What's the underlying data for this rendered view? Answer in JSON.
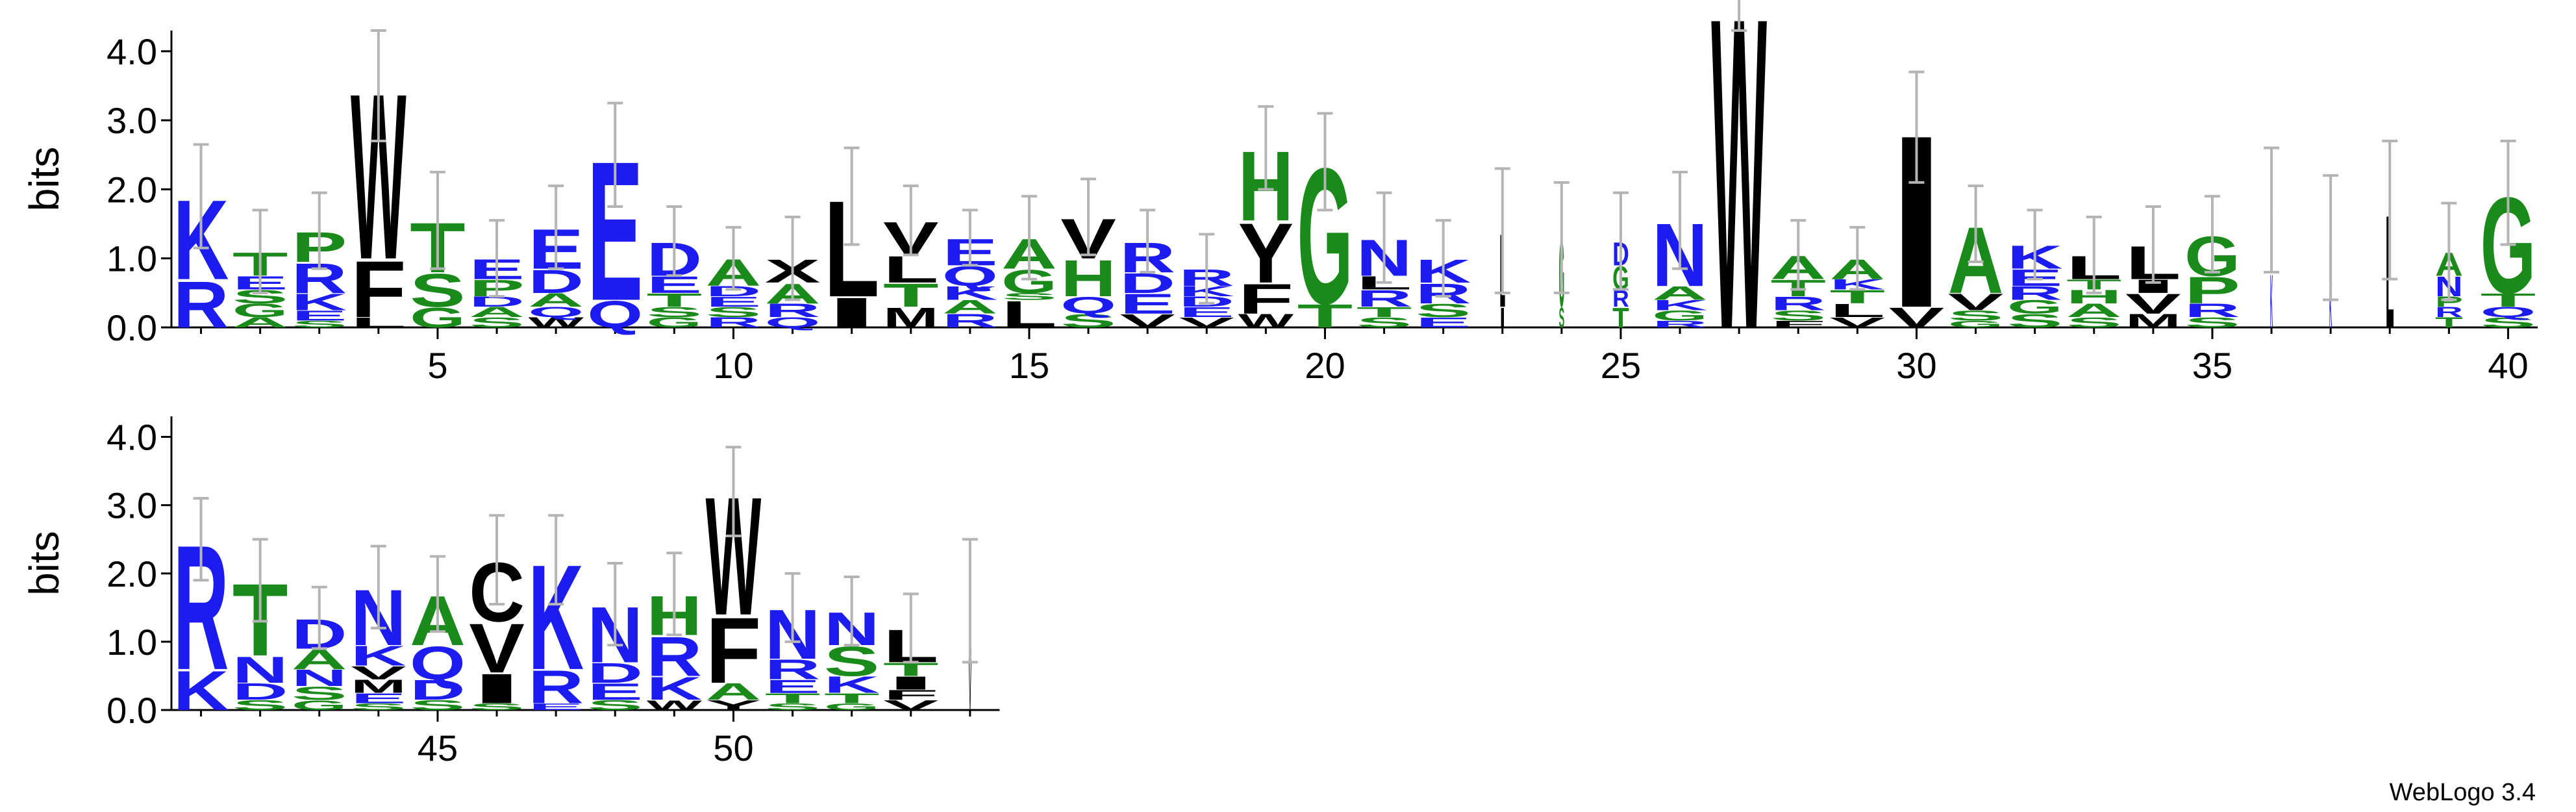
{
  "chart_data": [
    {
      "type": "logo",
      "ylabel": "bits",
      "x": [
        1,
        2,
        3,
        4,
        5,
        6,
        7,
        8,
        9,
        10,
        11,
        12,
        13,
        14,
        15,
        16,
        17,
        18,
        19,
        20,
        21,
        22,
        23,
        24,
        25,
        26,
        27,
        28,
        29,
        30,
        31,
        32,
        33,
        34,
        35,
        36,
        37,
        38,
        39,
        40
      ],
      "xlim": [
        0.5,
        40.5
      ],
      "ylim": [
        0,
        4.3
      ],
      "xticks": [
        5,
        10,
        15,
        20,
        25,
        30,
        35,
        40
      ],
      "yticks": [
        {
          "value": 0,
          "label": "0.0"
        },
        {
          "value": 1,
          "label": "1.0"
        },
        {
          "value": 2,
          "label": "2.0"
        },
        {
          "value": 3,
          "label": "3.0"
        },
        {
          "value": 4,
          "label": "4.0"
        }
      ],
      "colors": {
        "A": "#1a8a1a",
        "G": "#1a8a1a",
        "H": "#1a8a1a",
        "P": "#1a8a1a",
        "S": "#1a8a1a",
        "T": "#1a8a1a",
        "D": "#1c1cf0",
        "E": "#1c1cf0",
        "K": "#1c1cf0",
        "N": "#1c1cf0",
        "Q": "#1c1cf0",
        "R": "#1c1cf0",
        "C": "#000000",
        "F": "#000000",
        "I": "#000000",
        "L": "#000000",
        "M": "#000000",
        "V": "#000000",
        "W": "#000000",
        "Y": "#000000",
        "X": "#000000"
      },
      "positions": [
        {
          "letters": [
            "R",
            "K"
          ],
          "heights": [
            0.7,
            1.2
          ],
          "error": 0.75
        },
        {
          "letters": [
            "A",
            "G",
            "S",
            "E",
            "T"
          ],
          "heights": [
            0.15,
            0.2,
            0.2,
            0.2,
            0.35
          ],
          "error": 0.6
        },
        {
          "letters": [
            "S",
            "E",
            "K",
            "R",
            "P"
          ],
          "heights": [
            0.1,
            0.15,
            0.25,
            0.45,
            0.45
          ],
          "error": 0.55
        },
        {
          "letters": [
            "L",
            "F",
            "W"
          ],
          "heights": [
            0.15,
            0.85,
            2.5
          ],
          "error": 0.8
        },
        {
          "letters": [
            "G",
            "S",
            "T"
          ],
          "heights": [
            0.3,
            0.5,
            0.75
          ],
          "error": 0.7
        },
        {
          "letters": [
            "S",
            "A",
            "D",
            "P",
            "E"
          ],
          "heights": [
            0.15,
            0.15,
            0.15,
            0.25,
            0.3
          ],
          "error": 0.55
        },
        {
          "letters": [
            "W",
            "Q",
            "A",
            "D",
            "E"
          ],
          "heights": [
            0.15,
            0.15,
            0.2,
            0.35,
            0.6
          ],
          "error": 0.6
        },
        {
          "letters": [
            "Q",
            "E"
          ],
          "heights": [
            0.4,
            2.1
          ],
          "error": 0.75
        },
        {
          "letters": [
            "G",
            "S",
            "T",
            "E",
            "D"
          ],
          "heights": [
            0.15,
            0.15,
            0.2,
            0.25,
            0.5
          ],
          "error": 0.5
        },
        {
          "letters": [
            "R",
            "S",
            "E",
            "D",
            "A"
          ],
          "heights": [
            0.15,
            0.15,
            0.15,
            0.15,
            0.4
          ],
          "error": 0.45
        },
        {
          "letters": [
            "Q",
            "R",
            "A",
            "X"
          ],
          "heights": [
            0.15,
            0.2,
            0.3,
            0.35
          ],
          "error": 0.6
        },
        {
          "letters": [
            "I",
            "L"
          ],
          "heights": [
            0.45,
            1.45
          ],
          "error": 0.7
        },
        {
          "letters": [
            "M",
            "T",
            "L",
            "V"
          ],
          "heights": [
            0.3,
            0.35,
            0.4,
            0.5
          ],
          "error": 0.5
        },
        {
          "letters": [
            "R",
            "A",
            "K",
            "Q",
            "E"
          ],
          "heights": [
            0.2,
            0.2,
            0.2,
            0.3,
            0.4
          ],
          "error": 0.4
        },
        {
          "letters": [
            "L",
            "S",
            "G",
            "A"
          ],
          "heights": [
            0.4,
            0.1,
            0.35,
            0.45
          ],
          "error": 0.6
        },
        {
          "letters": [
            "S",
            "Q",
            "H",
            "V"
          ],
          "heights": [
            0.2,
            0.25,
            0.55,
            0.6
          ],
          "error": 0.55
        },
        {
          "letters": [
            "V",
            "E",
            "D",
            "R"
          ],
          "heights": [
            0.2,
            0.3,
            0.3,
            0.45
          ],
          "error": 0.45
        },
        {
          "letters": [
            "V",
            "E",
            "D",
            "K",
            "R"
          ],
          "heights": [
            0.15,
            0.15,
            0.15,
            0.15,
            0.25
          ],
          "error": 0.5
        },
        {
          "letters": [
            "W",
            "F",
            "Y",
            "H"
          ],
          "heights": [
            0.2,
            0.45,
            0.9,
            1.05
          ],
          "error": 0.6
        },
        {
          "letters": [
            "T",
            "G"
          ],
          "heights": [
            0.35,
            2.05
          ],
          "error": 0.7
        },
        {
          "letters": [
            "S",
            "T",
            "R",
            "L",
            "N"
          ],
          "heights": [
            0.15,
            0.15,
            0.25,
            0.2,
            0.55
          ],
          "error": 0.65
        },
        {
          "letters": [
            "E",
            "S",
            "R",
            "K"
          ],
          "heights": [
            0.15,
            0.2,
            0.3,
            0.35
          ],
          "error": 0.55
        },
        {
          "letters": [
            "I",
            "L"
          ],
          "heights": [
            0.3,
            1.1
          ],
          "error": 0.9,
          "width": 0.1
        },
        {
          "letters": [
            "S",
            "G"
          ],
          "heights": [
            0.3,
            1.0
          ],
          "error": 0.8,
          "width": 0.1
        },
        {
          "letters": [
            "T",
            "R",
            "G",
            "D"
          ],
          "heights": [
            0.3,
            0.25,
            0.35,
            0.35
          ],
          "error": 0.7,
          "width": 0.3
        },
        {
          "letters": [
            "R",
            "G",
            "K",
            "A",
            "N"
          ],
          "heights": [
            0.1,
            0.15,
            0.15,
            0.2,
            0.95
          ],
          "error": 0.7
        },
        {
          "letters": [
            "W"
          ],
          "heights": [
            4.7
          ],
          "error": 0.4
        },
        {
          "letters": [
            "F",
            "S",
            "R",
            "T",
            "A"
          ],
          "heights": [
            0.1,
            0.15,
            0.2,
            0.25,
            0.35
          ],
          "error": 0.5
        },
        {
          "letters": [
            "V",
            "L",
            "T",
            "K",
            "A"
          ],
          "heights": [
            0.15,
            0.2,
            0.2,
            0.15,
            0.3
          ],
          "error": 0.45
        },
        {
          "letters": [
            "V",
            "I"
          ],
          "heights": [
            0.3,
            2.6
          ],
          "error": 0.8
        },
        {
          "letters": [
            "G",
            "S",
            "V",
            "A"
          ],
          "heights": [
            0.1,
            0.15,
            0.25,
            1.0
          ],
          "error": 0.55
        },
        {
          "letters": [
            "S",
            "G",
            "R",
            "E",
            "K"
          ],
          "heights": [
            0.2,
            0.2,
            0.2,
            0.25,
            0.35
          ],
          "error": 0.5
        },
        {
          "letters": [
            "S",
            "A",
            "H",
            "T",
            "L"
          ],
          "heights": [
            0.15,
            0.2,
            0.2,
            0.15,
            0.35
          ],
          "error": 0.55
        },
        {
          "letters": [
            "M",
            "V",
            "I",
            "L"
          ],
          "heights": [
            0.2,
            0.3,
            0.2,
            0.5
          ],
          "error": 0.55
        },
        {
          "letters": [
            "S",
            "R",
            "P",
            "G"
          ],
          "heights": [
            0.15,
            0.2,
            0.4,
            0.6
          ],
          "error": 0.55
        },
        {
          "letters": [
            "K",
            "R"
          ],
          "heights": [
            0.8,
            0.9
          ],
          "error": 0.9,
          "width": 0.05
        },
        {
          "letters": [
            "K",
            "R"
          ],
          "heights": [
            0.6,
            0.7
          ],
          "error": 0.9,
          "width": 0.05
        },
        {
          "letters": [
            "L"
          ],
          "heights": [
            1.7
          ],
          "error": 1.0,
          "width": 0.15
        },
        {
          "letters": [
            "T",
            "R",
            "P",
            "N",
            "A"
          ],
          "heights": [
            0.15,
            0.15,
            0.15,
            0.3,
            0.35
          ],
          "error": 0.7,
          "width": 0.5
        },
        {
          "letters": [
            "S",
            "Q",
            "T",
            "G"
          ],
          "heights": [
            0.15,
            0.15,
            0.2,
            1.45
          ],
          "error": 0.75
        }
      ]
    },
    {
      "type": "logo",
      "ylabel": "bits",
      "x": [
        41,
        42,
        43,
        44,
        45,
        46,
        47,
        48,
        49,
        50,
        51,
        52,
        53,
        54
      ],
      "xlim": [
        40.5,
        54.5
      ],
      "ylim": [
        0,
        4.3
      ],
      "xticks": [
        45,
        50
      ],
      "yticks": [
        {
          "value": 0,
          "label": "0.0"
        },
        {
          "value": 1,
          "label": "1.0"
        },
        {
          "value": 2,
          "label": "2.0"
        },
        {
          "value": 3,
          "label": "3.0"
        },
        {
          "value": 4,
          "label": "4.0"
        }
      ],
      "colors": {
        "A": "#1a8a1a",
        "G": "#1a8a1a",
        "H": "#1a8a1a",
        "P": "#1a8a1a",
        "S": "#1a8a1a",
        "T": "#1a8a1a",
        "D": "#1c1cf0",
        "E": "#1c1cf0",
        "K": "#1c1cf0",
        "N": "#1c1cf0",
        "Q": "#1c1cf0",
        "R": "#1c1cf0",
        "C": "#000000",
        "F": "#000000",
        "I": "#000000",
        "L": "#000000",
        "M": "#000000",
        "V": "#000000",
        "W": "#000000",
        "Y": "#000000",
        "X": "#000000"
      },
      "positions": [
        {
          "letters": [
            "K",
            "R"
          ],
          "heights": [
            0.6,
            1.9
          ],
          "error": 0.6
        },
        {
          "letters": [
            "S",
            "D",
            "N",
            "T"
          ],
          "heights": [
            0.15,
            0.25,
            0.4,
            1.1
          ],
          "error": 0.6
        },
        {
          "letters": [
            "G",
            "S",
            "N",
            "A",
            "D"
          ],
          "heights": [
            0.15,
            0.2,
            0.25,
            0.3,
            0.45
          ],
          "error": 0.45
        },
        {
          "letters": [
            "S",
            "E",
            "M",
            "V",
            "K",
            "N"
          ],
          "heights": [
            0.1,
            0.15,
            0.2,
            0.2,
            0.3,
            0.85
          ],
          "error": 0.6
        },
        {
          "letters": [
            "S",
            "D",
            "Q",
            "A"
          ],
          "heights": [
            0.15,
            0.3,
            0.5,
            0.75
          ],
          "error": 0.55
        },
        {
          "letters": [
            "S",
            "I",
            "V",
            "C"
          ],
          "heights": [
            0.1,
            0.45,
            0.75,
            0.9
          ],
          "error": 0.65
        },
        {
          "letters": [
            "E",
            "R",
            "K"
          ],
          "heights": [
            0.1,
            0.5,
            1.6
          ],
          "error": 0.65
        },
        {
          "letters": [
            "S",
            "E",
            "D",
            "N"
          ],
          "heights": [
            0.15,
            0.25,
            0.3,
            0.85
          ],
          "error": 0.6
        },
        {
          "letters": [
            "W",
            "K",
            "R",
            "H"
          ],
          "heights": [
            0.15,
            0.35,
            0.6,
            0.6
          ],
          "error": 0.6
        },
        {
          "letters": [
            "Y",
            "A",
            "F",
            "W"
          ],
          "heights": [
            0.15,
            0.25,
            1.0,
            1.8
          ],
          "error": 0.65
        },
        {
          "letters": [
            "S",
            "T",
            "E",
            "R",
            "N"
          ],
          "heights": [
            0.1,
            0.15,
            0.2,
            0.3,
            0.75
          ],
          "error": 0.5
        },
        {
          "letters": [
            "G",
            "T",
            "K",
            "S",
            "N"
          ],
          "heights": [
            0.1,
            0.15,
            0.25,
            0.45,
            0.5
          ],
          "error": 0.5
        },
        {
          "letters": [
            "V",
            "F",
            "I",
            "T",
            "L"
          ],
          "heights": [
            0.15,
            0.15,
            0.2,
            0.2,
            0.5
          ],
          "error": 0.5
        },
        {
          "letters": [
            "V",
            "L"
          ],
          "heights": [
            0.8,
            0.8
          ],
          "error": 0.9,
          "width": 0.05
        }
      ]
    }
  ],
  "footer": "WebLogo 3.4"
}
